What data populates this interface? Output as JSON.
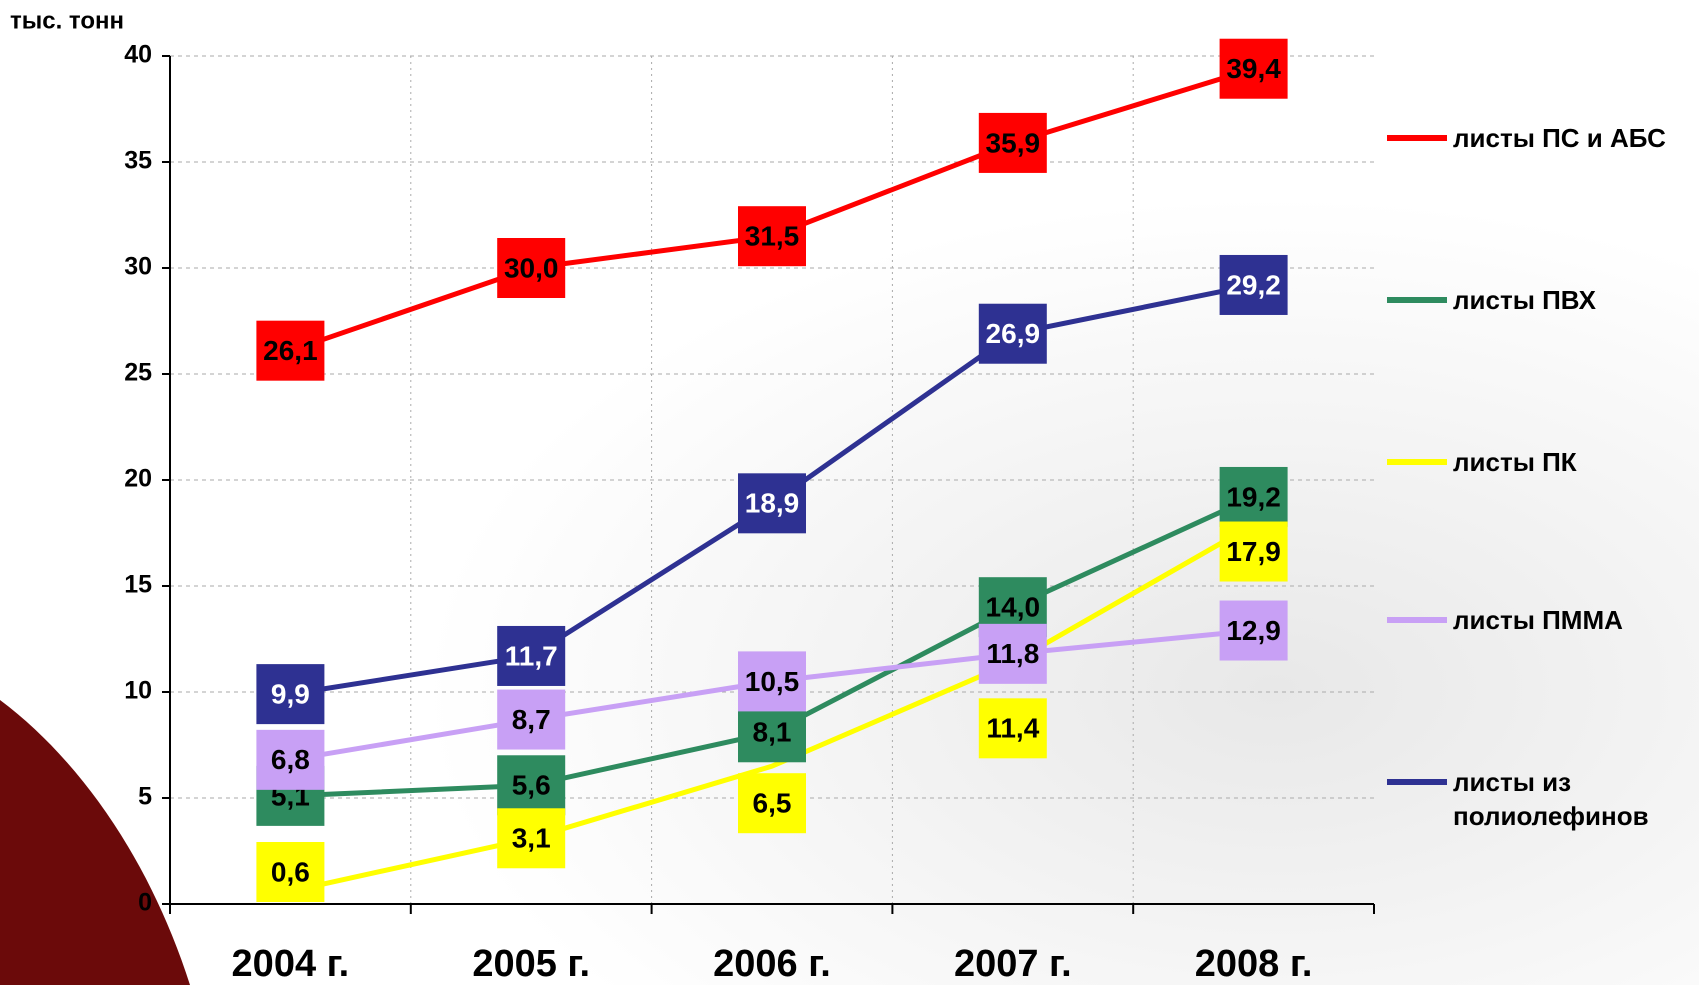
{
  "chart_data": {
    "type": "line",
    "y_axis_label": "тыс. тонн",
    "categories": [
      "2004 г.",
      "2005 г.",
      "2006 г.",
      "2007 г.",
      "2008 г."
    ],
    "ylim": [
      0,
      40
    ],
    "yticks": [
      0,
      5,
      10,
      15,
      20,
      25,
      30,
      35,
      40
    ],
    "grid": true,
    "series": [
      {
        "name": "листы ПС и АБС",
        "color": "#ff0000",
        "values": [
          26.1,
          30.0,
          31.5,
          35.9,
          39.4
        ],
        "value_labels": [
          "26,1",
          "30,0",
          "31,5",
          "35,9",
          "39,4"
        ]
      },
      {
        "name": "листы ПВХ",
        "color": "#2e8b5f",
        "values": [
          5.1,
          5.6,
          8.1,
          14.0,
          19.2
        ],
        "value_labels": [
          "5,1",
          "5,6",
          "8,1",
          "14,0",
          "19,2"
        ]
      },
      {
        "name": "листы ПК",
        "color": "#ffff00",
        "values": [
          0.6,
          3.1,
          6.5,
          11.4,
          17.9
        ],
        "value_labels": [
          "0,6",
          "3,1",
          "6,5",
          "11,4",
          "17,9"
        ]
      },
      {
        "name": "листы ПММА",
        "color": "#c8a0f5",
        "values": [
          6.8,
          8.7,
          10.5,
          11.8,
          12.9
        ],
        "value_labels": [
          "6,8",
          "8,7",
          "10,5",
          "11,8",
          "12,9"
        ]
      },
      {
        "name": "листы из полиолефинов",
        "color": "#2e3192",
        "values": [
          9.9,
          11.7,
          18.9,
          26.9,
          29.2
        ],
        "value_labels": [
          "9,9",
          "11,7",
          "18,9",
          "26,9",
          "29,2"
        ]
      }
    ]
  }
}
